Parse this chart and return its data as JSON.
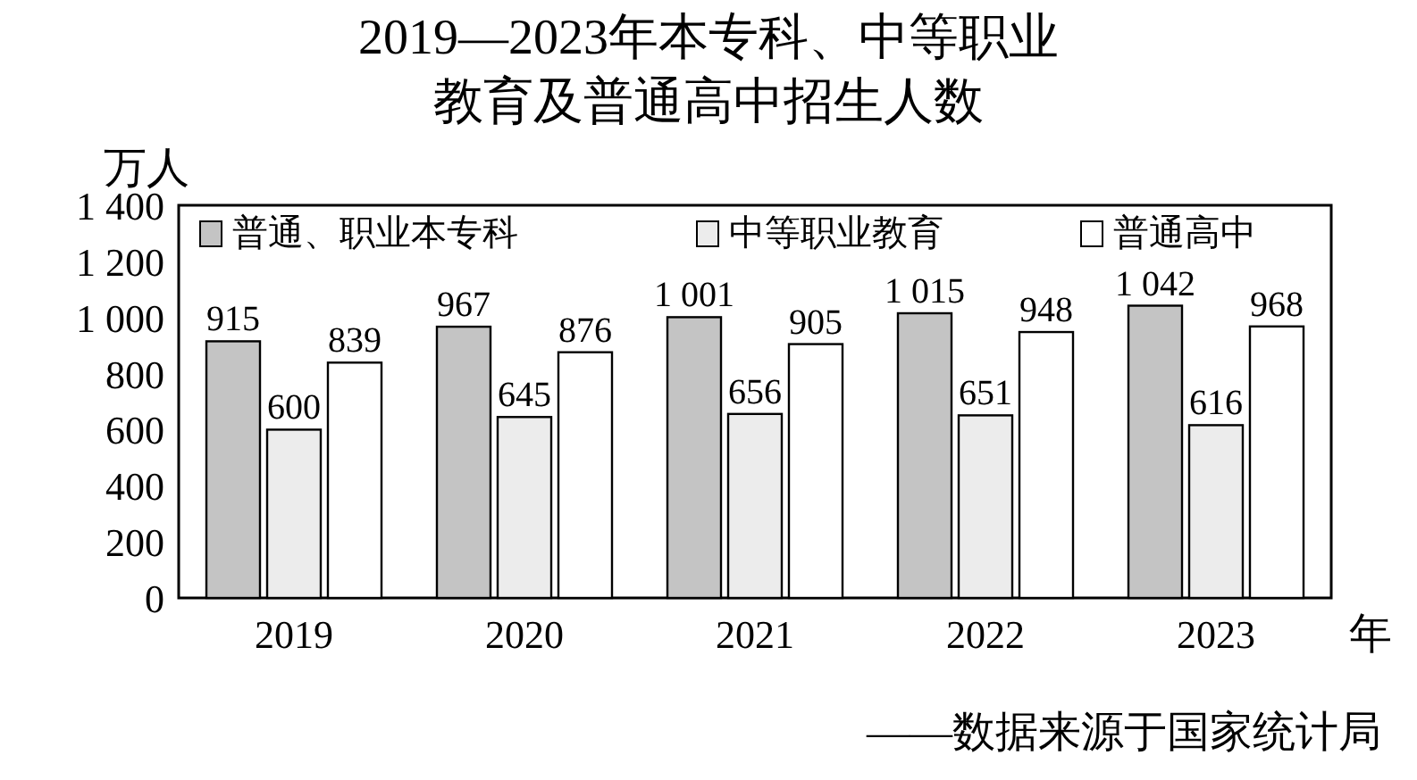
{
  "chart_data": {
    "type": "bar",
    "title": "2019—2023年本专科、中等职业教育及普通高中招生人数",
    "xlabel": "年",
    "ylabel": "万人",
    "categories": [
      "2019",
      "2020",
      "2021",
      "2022",
      "2023"
    ],
    "series": [
      {
        "name": "普通、职业本专科",
        "color": "#c4c4c4",
        "values": [
          915,
          967,
          1001,
          1015,
          1042
        ],
        "value_labels": [
          "915",
          "967",
          "1 001",
          "1 015",
          "1 042"
        ]
      },
      {
        "name": "中等职业教育",
        "color": "#ececec",
        "values": [
          600,
          645,
          656,
          651,
          616
        ],
        "value_labels": [
          "600",
          "645",
          "656",
          "651",
          "616"
        ]
      },
      {
        "name": "普通高中",
        "color": "#ffffff",
        "values": [
          839,
          876,
          905,
          948,
          968
        ],
        "value_labels": [
          "839",
          "876",
          "905",
          "948",
          "968"
        ]
      }
    ],
    "ylim": [
      0,
      1400
    ],
    "yticks": [
      0,
      200,
      400,
      600,
      800,
      {
        "value": 1000,
        "label": "1 000"
      },
      {
        "value": 1200,
        "label": "1 200"
      },
      {
        "value": 1400,
        "label": "1 400"
      }
    ],
    "legend": "top",
    "annotations": [
      "——数据来源于国家统计局"
    ]
  }
}
